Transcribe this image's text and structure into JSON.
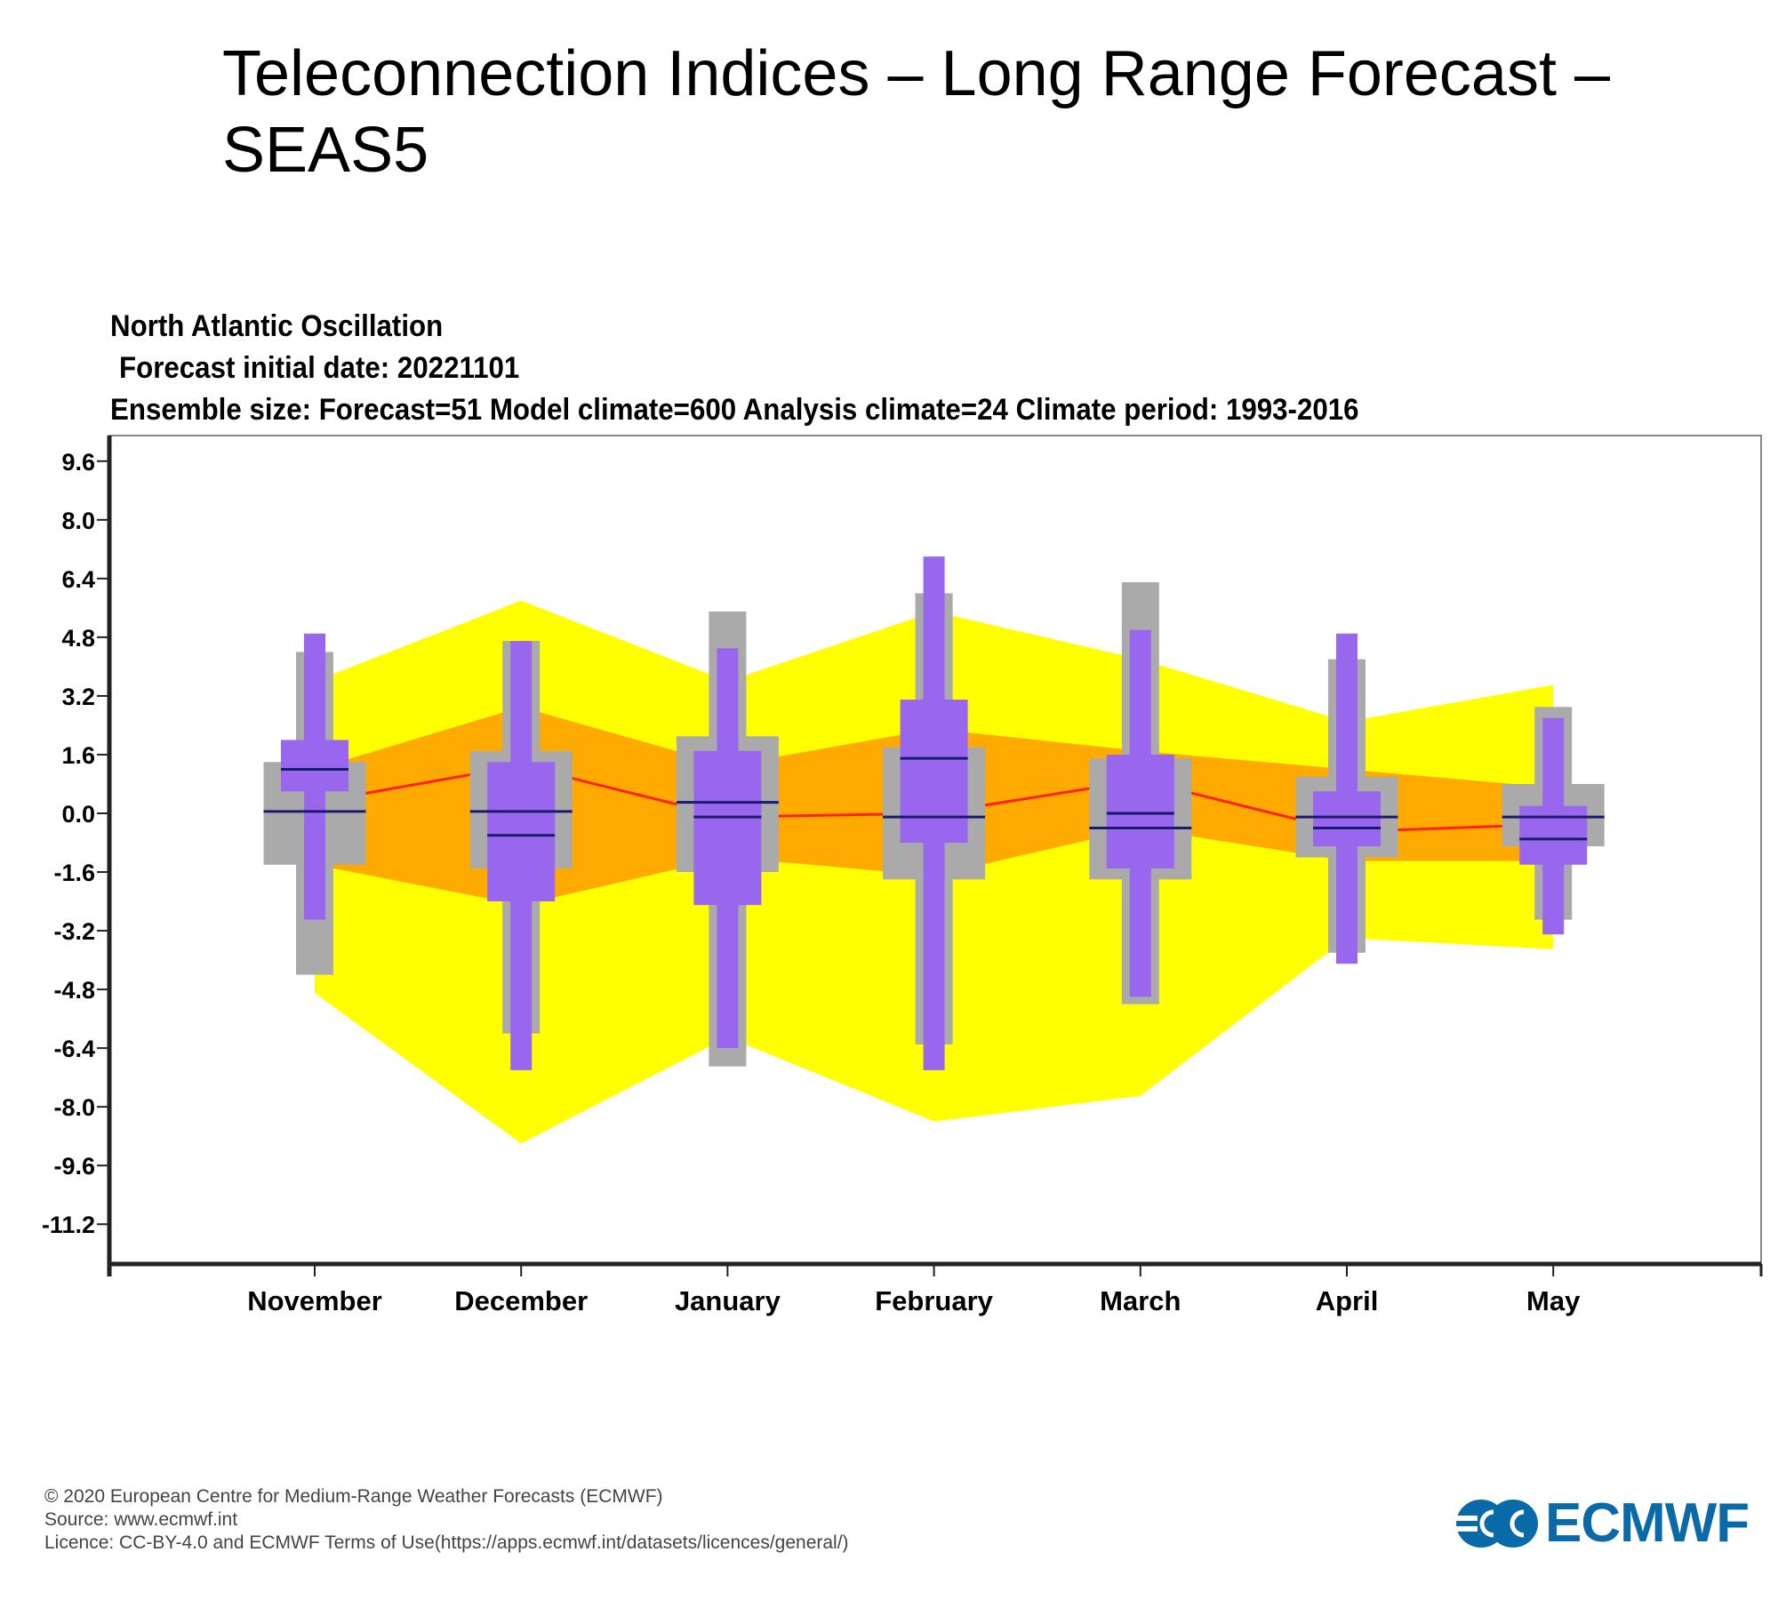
{
  "header": {
    "title": "Teleconnection Indices – Long Range Forecast – SEAS5"
  },
  "chart_data": {
    "type": "boxplot",
    "title": "North Atlantic Oscillation",
    "subtitle_lines": [
      "Forecast initial date: 20221101",
      "Ensemble size: Forecast=51 Model climate=600 Analysis climate=24   Climate period: 1993-2016"
    ],
    "xlabel": "",
    "ylabel": "",
    "ylim": [
      -12.2,
      10.4
    ],
    "yticks": [
      "9.6",
      "8.0",
      "6.4",
      "4.8",
      "3.2",
      "1.6",
      "0.0",
      "-1.6",
      "-3.2",
      "-4.8",
      "-6.4",
      "-8.0",
      "-9.6",
      "-11.2"
    ],
    "categories": [
      "November",
      "December",
      "January",
      "February",
      "March",
      "April",
      "May"
    ],
    "analysis_climate_outer": {
      "name": "Analysis climate extremes (yellow)",
      "upper": [
        3.6,
        5.8,
        3.6,
        5.5,
        4.2,
        2.5,
        3.5
      ],
      "lower": [
        -4.9,
        -9.0,
        -6.1,
        -8.4,
        -7.7,
        -3.4,
        -3.7
      ]
    },
    "analysis_climate_inner": {
      "name": "Analysis climate inner range (orange)",
      "upper": [
        1.2,
        2.9,
        1.3,
        2.3,
        1.7,
        1.2,
        0.7
      ],
      "lower": [
        -1.4,
        -2.5,
        -1.2,
        -1.7,
        -0.4,
        -1.3,
        -1.3
      ]
    },
    "analysis_climate_median": {
      "name": "Analysis climate median (red line)",
      "values": [
        0.3,
        1.3,
        -0.1,
        0.0,
        0.9,
        -0.5,
        -0.3
      ]
    },
    "series": [
      {
        "name": "Model climate",
        "color": "#aaaaaa",
        "whisker_high": [
          4.4,
          4.7,
          5.5,
          6.0,
          6.3,
          4.2,
          2.9
        ],
        "box_high": [
          1.4,
          1.7,
          2.1,
          1.8,
          1.5,
          1.0,
          0.8
        ],
        "median": [
          0.05,
          0.05,
          0.3,
          -0.1,
          -0.4,
          -0.1,
          -0.1
        ],
        "box_low": [
          -1.4,
          -1.5,
          -1.6,
          -1.8,
          -1.8,
          -1.2,
          -0.9
        ],
        "whisker_low": [
          -4.4,
          -6.0,
          -6.9,
          -6.3,
          -5.2,
          -3.8,
          -2.9
        ]
      },
      {
        "name": "Forecast",
        "color": "#9966ee",
        "whisker_high": [
          4.9,
          4.7,
          4.5,
          7.0,
          5.0,
          4.9,
          2.6
        ],
        "box_high": [
          2.0,
          1.4,
          1.7,
          3.1,
          1.6,
          0.6,
          0.2
        ],
        "median": [
          1.2,
          -0.6,
          -0.1,
          1.5,
          0.0,
          -0.4,
          -0.7
        ],
        "box_low": [
          0.6,
          -2.4,
          -2.5,
          -0.8,
          -1.5,
          -0.9,
          -1.4
        ],
        "whisker_low": [
          -2.9,
          -7.0,
          -6.4,
          -7.0,
          -5.0,
          -4.1,
          -3.3
        ]
      }
    ],
    "colors": {
      "outer_band": "#ffff00",
      "inner_band": "#ffaa00",
      "median_line": "#ff2200",
      "box_median": "#1a1a6e"
    },
    "grid": false,
    "legend": "none"
  },
  "footer": {
    "copyright": "© 2020 European Centre for Medium-Range Weather Forecasts (ECMWF)",
    "source": "Source: www.ecmwf.int",
    "licence": "Licence: CC-BY-4.0 and ECMWF Terms of Use(https://apps.ecmwf.int/datasets/licences/general/)",
    "logo_text": "ECMWF",
    "logo_color": "#0a6aa8"
  }
}
